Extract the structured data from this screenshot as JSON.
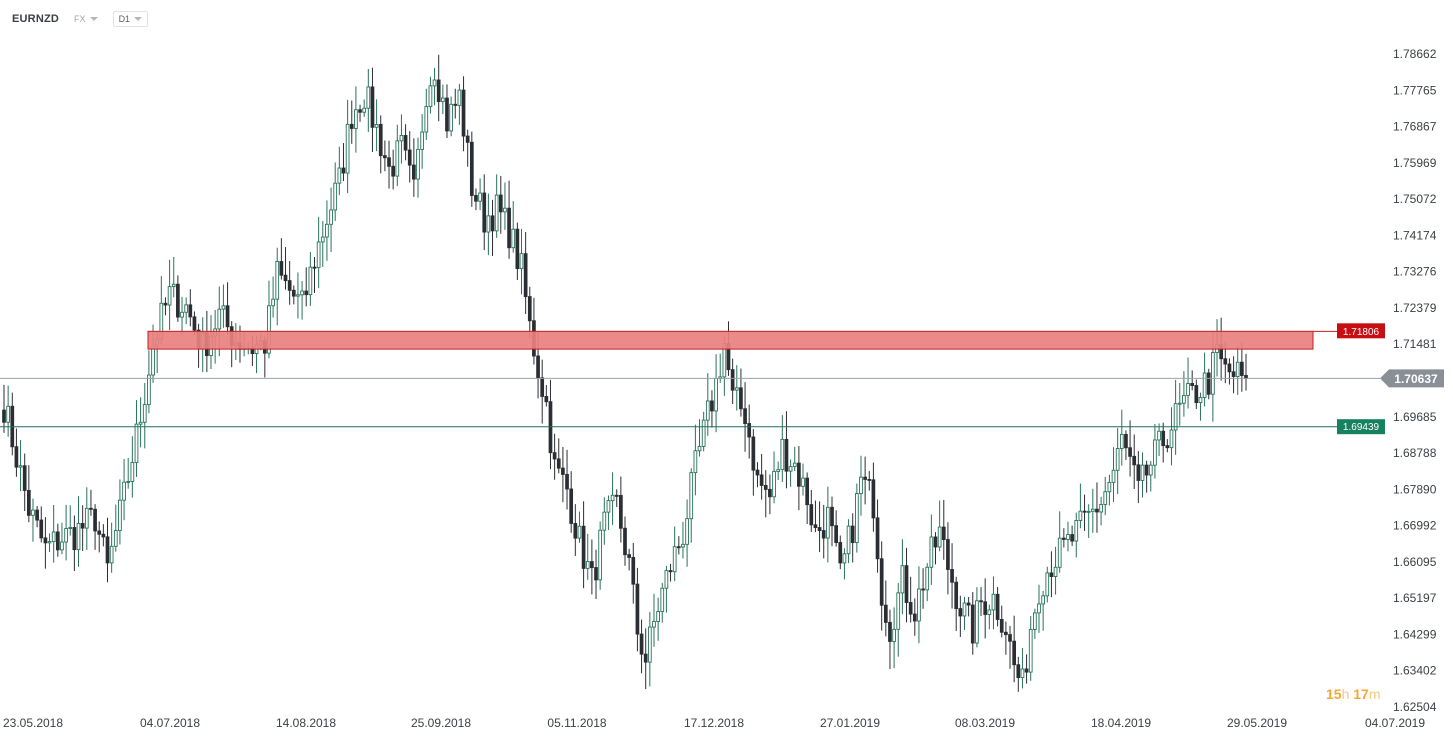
{
  "header": {
    "symbol": "EURNZD",
    "market": "FX",
    "timeframe": "D1"
  },
  "countdown": {
    "hours": "15",
    "hours_unit": "h",
    "minutes": "17",
    "minutes_unit": "m"
  },
  "colors": {
    "bull": "#27735b",
    "bear": "#2b2e33",
    "resistance_fill": "#e8807f",
    "resistance_border": "#c81d1d",
    "support_line": "#1f6f60",
    "support_label": "#17805e",
    "price_label": "#8a8f96"
  },
  "chart_data": {
    "type": "candlestick",
    "symbol": "EURNZD",
    "timeframe": "D1",
    "ylim": [
      1.625,
      1.793
    ],
    "y_ticks": [
      "1.78662",
      "1.77765",
      "1.76867",
      "1.75969",
      "1.75072",
      "1.74174",
      "1.73276",
      "1.72379",
      "1.71481",
      "1.70637",
      "1.69685",
      "1.68788",
      "1.67890",
      "1.66992",
      "1.66095",
      "1.65197",
      "1.64299",
      "1.63402",
      "1.62504"
    ],
    "x_ticks": [
      "23.05.2018",
      "04.07.2018",
      "14.08.2018",
      "25.09.2018",
      "05.11.2018",
      "17.12.2018",
      "27.01.2019",
      "08.03.2019",
      "18.04.2019",
      "29.05.2019",
      "04.07.2019"
    ],
    "current_price": "1.70637",
    "levels": [
      {
        "kind": "resistance_zone",
        "label": "1.71806",
        "top": 1.718,
        "bottom": 1.7136
      },
      {
        "kind": "support_line",
        "label": "1.69439",
        "value": 1.6944
      }
    ],
    "close_path": [
      [
        0,
        1.7
      ],
      [
        6,
        1.674
      ],
      [
        10,
        1.664
      ],
      [
        14,
        1.667
      ],
      [
        17,
        1.668
      ],
      [
        22,
        1.672
      ],
      [
        25,
        1.659
      ],
      [
        29,
        1.677
      ],
      [
        33,
        1.697
      ],
      [
        36,
        1.715
      ],
      [
        40,
        1.727
      ],
      [
        44,
        1.724
      ],
      [
        48,
        1.714
      ],
      [
        52,
        1.722
      ],
      [
        56,
        1.716
      ],
      [
        60,
        1.714
      ],
      [
        63,
        1.715
      ],
      [
        66,
        1.732
      ],
      [
        69,
        1.728
      ],
      [
        72,
        1.724
      ],
      [
        75,
        1.736
      ],
      [
        78,
        1.746
      ],
      [
        81,
        1.755
      ],
      [
        84,
        1.772
      ],
      [
        87,
        1.777
      ],
      [
        90,
        1.768
      ],
      [
        93,
        1.758
      ],
      [
        96,
        1.763
      ],
      [
        99,
        1.752
      ],
      [
        102,
        1.778
      ],
      [
        104,
        1.784
      ],
      [
        107,
        1.77
      ],
      [
        110,
        1.776
      ],
      [
        113,
        1.754
      ],
      [
        116,
        1.746
      ],
      [
        119,
        1.748
      ],
      [
        122,
        1.743
      ],
      [
        125,
        1.733
      ],
      [
        127,
        1.719
      ],
      [
        129,
        1.709
      ],
      [
        131,
        1.7
      ],
      [
        133,
        1.684
      ],
      [
        136,
        1.679
      ],
      [
        139,
        1.666
      ],
      [
        142,
        1.656
      ],
      [
        145,
        1.67
      ],
      [
        148,
        1.675
      ],
      [
        151,
        1.66
      ],
      [
        153,
        1.644
      ],
      [
        155,
        1.637
      ],
      [
        158,
        1.65
      ],
      [
        161,
        1.66
      ],
      [
        164,
        1.668
      ],
      [
        167,
        1.684
      ],
      [
        170,
        1.697
      ],
      [
        172,
        1.705
      ],
      [
        174,
        1.715
      ],
      [
        176,
        1.701
      ],
      [
        179,
        1.698
      ],
      [
        182,
        1.681
      ],
      [
        185,
        1.677
      ],
      [
        188,
        1.689
      ],
      [
        191,
        1.685
      ],
      [
        194,
        1.677
      ],
      [
        196,
        1.668
      ],
      [
        199,
        1.672
      ],
      [
        202,
        1.657
      ],
      [
        205,
        1.67
      ],
      [
        207,
        1.681
      ],
      [
        210,
        1.676
      ],
      [
        212,
        1.654
      ],
      [
        214,
        1.645
      ],
      [
        217,
        1.656
      ],
      [
        220,
        1.649
      ],
      [
        223,
        1.66
      ],
      [
        226,
        1.668
      ],
      [
        228,
        1.66
      ],
      [
        231,
        1.65
      ],
      [
        234,
        1.644
      ],
      [
        236,
        1.651
      ],
      [
        239,
        1.652
      ],
      [
        242,
        1.645
      ],
      [
        244,
        1.635
      ],
      [
        246,
        1.63
      ],
      [
        248,
        1.645
      ],
      [
        250,
        1.655
      ],
      [
        253,
        1.661
      ],
      [
        256,
        1.664
      ],
      [
        259,
        1.668
      ],
      [
        262,
        1.672
      ],
      [
        265,
        1.676
      ],
      [
        268,
        1.683
      ],
      [
        270,
        1.691
      ],
      [
        272,
        1.685
      ],
      [
        274,
        1.678
      ],
      [
        276,
        1.683
      ],
      [
        279,
        1.689
      ],
      [
        282,
        1.695
      ],
      [
        285,
        1.7
      ],
      [
        288,
        1.703
      ],
      [
        291,
        1.706
      ],
      [
        293,
        1.712
      ],
      [
        295,
        1.708
      ],
      [
        298,
        1.707
      ],
      [
        300,
        1.706
      ]
    ]
  }
}
